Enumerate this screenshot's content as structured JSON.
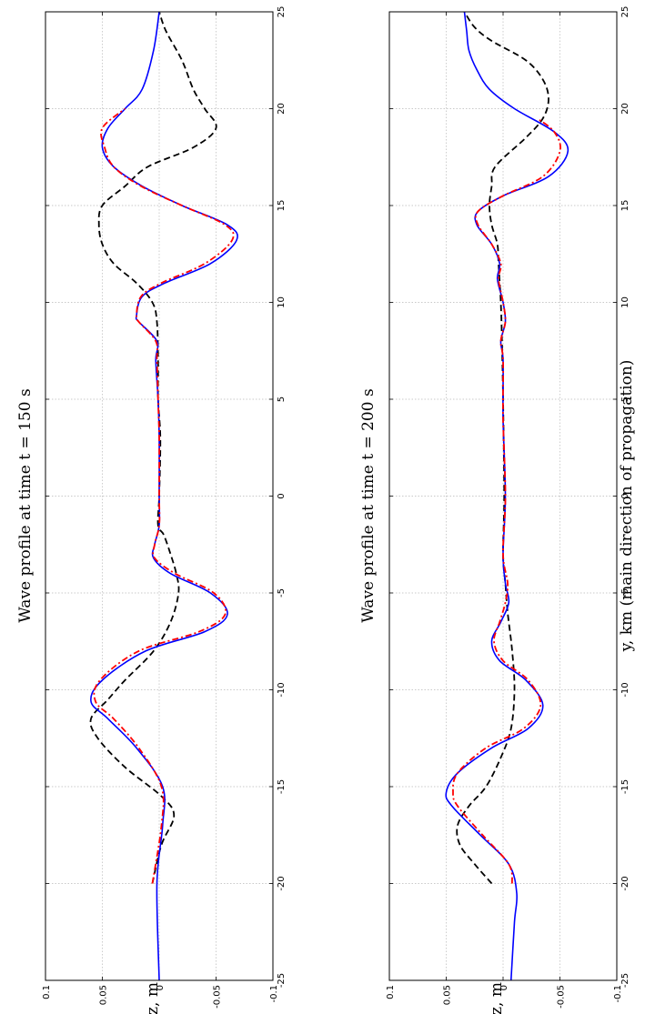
{
  "chart_data": [
    {
      "type": "line",
      "title": "Wave profile at time t = 150 s",
      "xlabel": "",
      "ylabel": "z, m",
      "xlim": [
        -25,
        25
      ],
      "ylim": [
        -0.1,
        0.1
      ],
      "xticks": [
        -25,
        -20,
        -15,
        -10,
        -5,
        0,
        5,
        10,
        15,
        20,
        25
      ],
      "yticks": [
        0.1,
        0.05,
        0,
        -0.05,
        -0.1
      ],
      "xtick_labels": [
        "-25",
        "-20",
        "-15",
        "-10",
        "-5",
        "0",
        "5",
        "10",
        "15",
        "20",
        "25"
      ],
      "ytick_labels": [
        "0.1",
        "0.05",
        "0",
        "-0.05",
        "-0.1"
      ],
      "grid": true,
      "series": [
        {
          "style": "solid",
          "color": "#0000ff",
          "points": [
            [
              -25,
              0
            ],
            [
              -20,
              0.002
            ],
            [
              -17,
              -0.003
            ],
            [
              -15,
              -0.003
            ],
            [
              -13,
              0.02
            ],
            [
              -11.5,
              0.045
            ],
            [
              -10.6,
              0.06
            ],
            [
              -9.5,
              0.05
            ],
            [
              -8,
              0.012
            ],
            [
              -7,
              -0.04
            ],
            [
              -6.1,
              -0.06
            ],
            [
              -5,
              -0.045
            ],
            [
              -4,
              -0.01
            ],
            [
              -3.2,
              0.005
            ],
            [
              -2.5,
              0.004
            ],
            [
              -1.5,
              0
            ],
            [
              0,
              0
            ],
            [
              3,
              0
            ],
            [
              5,
              0.001
            ],
            [
              7,
              0.003
            ],
            [
              8,
              0.002
            ],
            [
              9,
              0.018
            ],
            [
              9.3,
              0.02
            ],
            [
              10.3,
              0.015
            ],
            [
              11,
              -0.005
            ],
            [
              12,
              -0.045
            ],
            [
              13.2,
              -0.068
            ],
            [
              14,
              -0.06
            ],
            [
              15,
              -0.02
            ],
            [
              16,
              0.015
            ],
            [
              17,
              0.04
            ],
            [
              18,
              0.05
            ],
            [
              19,
              0.045
            ],
            [
              20,
              0.03
            ],
            [
              21,
              0.015
            ],
            [
              23,
              0.005
            ],
            [
              25,
              0
            ]
          ]
        },
        {
          "style": "dashdot",
          "color": "#ff0000",
          "points": [
            [
              -20,
              0.006
            ],
            [
              -17,
              -0.002
            ],
            [
              -15,
              -0.002
            ],
            [
              -13,
              0.018
            ],
            [
              -11.5,
              0.04
            ],
            [
              -10.6,
              0.056
            ],
            [
              -9.5,
              0.052
            ],
            [
              -8,
              0.018
            ],
            [
              -7,
              -0.035
            ],
            [
              -6.1,
              -0.058
            ],
            [
              -5,
              -0.048
            ],
            [
              -4,
              -0.014
            ],
            [
              -3.2,
              0.004
            ],
            [
              -2.5,
              0.004
            ],
            [
              -1.5,
              0
            ],
            [
              0,
              0
            ],
            [
              3,
              0
            ],
            [
              5,
              0.001
            ],
            [
              7,
              0.002
            ],
            [
              8,
              0.003
            ],
            [
              9,
              0.018
            ],
            [
              9.3,
              0.02
            ],
            [
              10.3,
              0.016
            ],
            [
              11,
              -0.002
            ],
            [
              12,
              -0.04
            ],
            [
              13.2,
              -0.064
            ],
            [
              14,
              -0.058
            ],
            [
              15,
              -0.02
            ],
            [
              16,
              0.016
            ],
            [
              17,
              0.04
            ],
            [
              18,
              0.048
            ],
            [
              19,
              0.05
            ],
            [
              20,
              0.03
            ]
          ]
        },
        {
          "style": "dashed",
          "color": "#000000",
          "points": [
            [
              -20,
              0.006
            ],
            [
              -18,
              -0.002
            ],
            [
              -16.5,
              -0.013
            ],
            [
              -15.5,
              -0.002
            ],
            [
              -14,
              0.03
            ],
            [
              -12.5,
              0.054
            ],
            [
              -11.5,
              0.06
            ],
            [
              -10.5,
              0.045
            ],
            [
              -9.5,
              0.03
            ],
            [
              -8,
              0.005
            ],
            [
              -6.5,
              -0.01
            ],
            [
              -5,
              -0.017
            ],
            [
              -4,
              -0.015
            ],
            [
              -3,
              -0.01
            ],
            [
              -2,
              -0.004
            ],
            [
              -1.5,
              0.001
            ],
            [
              0,
              0
            ],
            [
              3,
              -0.001
            ],
            [
              5,
              0.001
            ],
            [
              7,
              0.001
            ],
            [
              9,
              0.002
            ],
            [
              10,
              0.006
            ],
            [
              11,
              0.02
            ],
            [
              12,
              0.04
            ],
            [
              13,
              0.05
            ],
            [
              14,
              0.053
            ],
            [
              15,
              0.05
            ],
            [
              16,
              0.03
            ],
            [
              17,
              0.01
            ],
            [
              18,
              -0.03
            ],
            [
              19,
              -0.05
            ],
            [
              20,
              -0.04
            ],
            [
              21,
              -0.03
            ],
            [
              22.5,
              -0.02
            ],
            [
              24,
              -0.006
            ],
            [
              25,
              0
            ]
          ]
        }
      ]
    },
    {
      "type": "line",
      "title": "Wave profile at time t = 200 s",
      "xlabel": "y, km (main direction of propagation)",
      "ylabel": "z, m",
      "xlim": [
        -25,
        25
      ],
      "ylim": [
        -0.1,
        0.1
      ],
      "xticks": [
        -25,
        -20,
        -15,
        -10,
        -5,
        0,
        5,
        10,
        15,
        20,
        25
      ],
      "yticks": [
        0.1,
        0.05,
        0,
        -0.05,
        -0.1
      ],
      "xtick_labels": [
        "-25",
        "-20",
        "-15",
        "-10",
        "-5",
        "0",
        "5",
        "10",
        "15",
        "20",
        "25"
      ],
      "ytick_labels": [
        "0.1",
        "0.05",
        "0",
        "-0.05",
        "-0.1"
      ],
      "grid": true,
      "series": [
        {
          "style": "solid",
          "color": "#0000ff",
          "points": [
            [
              -25,
              -0.007
            ],
            [
              -22,
              -0.01
            ],
            [
              -20.5,
              -0.012
            ],
            [
              -19,
              -0.005
            ],
            [
              -17.5,
              0.02
            ],
            [
              -16,
              0.045
            ],
            [
              -15.3,
              0.05
            ],
            [
              -14.3,
              0.04
            ],
            [
              -13,
              0.01
            ],
            [
              -12,
              -0.022
            ],
            [
              -10.8,
              -0.035
            ],
            [
              -9.5,
              -0.02
            ],
            [
              -8.5,
              0.003
            ],
            [
              -7.5,
              0.01
            ],
            [
              -6.5,
              0.002
            ],
            [
              -5.5,
              -0.005
            ],
            [
              -4.5,
              -0.002
            ],
            [
              -3,
              0
            ],
            [
              0,
              -0.002
            ],
            [
              4,
              0
            ],
            [
              7,
              0
            ],
            [
              8,
              0.002
            ],
            [
              9,
              -0.002
            ],
            [
              10,
              0
            ],
            [
              11.2,
              0.005
            ],
            [
              12,
              0.003
            ],
            [
              13,
              0.01
            ],
            [
              14,
              0.023
            ],
            [
              14.7,
              0.022
            ],
            [
              15.5,
              0
            ],
            [
              16.5,
              -0.04
            ],
            [
              17.8,
              -0.057
            ],
            [
              18.8,
              -0.045
            ],
            [
              20,
              -0.01
            ],
            [
              21,
              0.012
            ],
            [
              22,
              0.023
            ],
            [
              23,
              0.03
            ],
            [
              24,
              0.032
            ],
            [
              25,
              0.034
            ]
          ]
        },
        {
          "style": "dashdot",
          "color": "#ff0000",
          "points": [
            [
              -20,
              -0.008
            ],
            [
              -19,
              -0.005
            ],
            [
              -17.5,
              0.018
            ],
            [
              -16,
              0.04
            ],
            [
              -15.3,
              0.044
            ],
            [
              -14.3,
              0.04
            ],
            [
              -13,
              0.015
            ],
            [
              -12,
              -0.018
            ],
            [
              -10.8,
              -0.033
            ],
            [
              -9.5,
              -0.022
            ],
            [
              -8.5,
              0
            ],
            [
              -7.5,
              0.008
            ],
            [
              -6.5,
              0.003
            ],
            [
              -5.5,
              -0.002
            ],
            [
              -4.5,
              -0.004
            ],
            [
              -3,
              0
            ],
            [
              0,
              -0.002
            ],
            [
              4,
              0
            ],
            [
              7,
              0
            ],
            [
              8,
              0.002
            ],
            [
              9,
              -0.002
            ],
            [
              10,
              0
            ],
            [
              11.2,
              0.004
            ],
            [
              12,
              0.002
            ],
            [
              13,
              0.01
            ],
            [
              14,
              0.022
            ],
            [
              14.7,
              0.022
            ],
            [
              15.5,
              0
            ],
            [
              16.5,
              -0.035
            ],
            [
              17.8,
              -0.05
            ],
            [
              18.8,
              -0.045
            ],
            [
              19.5,
              -0.03
            ]
          ]
        },
        {
          "style": "dashed",
          "color": "#000000",
          "points": [
            [
              -20,
              0.01
            ],
            [
              -19,
              0.025
            ],
            [
              -18,
              0.038
            ],
            [
              -17,
              0.04
            ],
            [
              -16,
              0.03
            ],
            [
              -15,
              0.015
            ],
            [
              -13.5,
              0.002
            ],
            [
              -12,
              -0.007
            ],
            [
              -10,
              -0.01
            ],
            [
              -8,
              -0.008
            ],
            [
              -6,
              -0.004
            ],
            [
              -4.5,
              -0.002
            ],
            [
              -3,
              0
            ],
            [
              0,
              -0.001
            ],
            [
              5,
              0
            ],
            [
              8,
              0.001
            ],
            [
              10,
              0.002
            ],
            [
              12,
              0.004
            ],
            [
              13,
              0.005
            ],
            [
              14,
              0.01
            ],
            [
              15,
              0.012
            ],
            [
              16,
              0.01
            ],
            [
              17,
              0.007
            ],
            [
              18.5,
              -0.02
            ],
            [
              19.5,
              -0.035
            ],
            [
              20.5,
              -0.04
            ],
            [
              21.5,
              -0.035
            ],
            [
              22.5,
              -0.02
            ],
            [
              23.5,
              0.01
            ],
            [
              24.2,
              0.025
            ],
            [
              25,
              0.034
            ]
          ]
        }
      ]
    }
  ]
}
